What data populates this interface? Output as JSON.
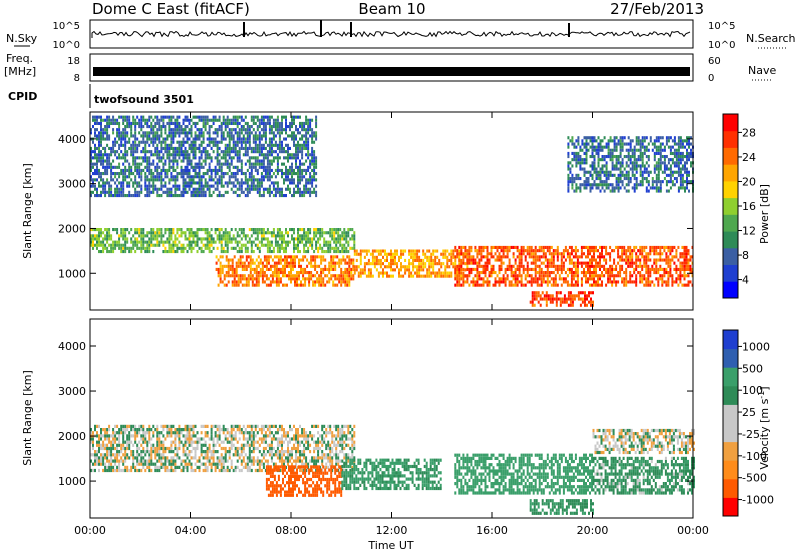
{
  "header": {
    "station": "Dome C East (fitACF)",
    "beam": "Beam 10",
    "date": "27/Feb/2013"
  },
  "params": {
    "nsky_label": "N.Sky",
    "nsearch_label": "N.Search",
    "freq_label": "Freq.",
    "freq_unit": "[MHz]",
    "nave_label": "Nave",
    "cpid_label": "CPID",
    "cpid_value": "twofsound 3501",
    "noise_ticks": [
      "10^5",
      "10^0"
    ],
    "freq_ticks": [
      "18",
      "8"
    ],
    "nave_ticks": [
      "60",
      "0"
    ]
  },
  "chart_data": [
    {
      "type": "heatmap",
      "title": "",
      "xlabel": "",
      "ylabel": "Slant Range [km]",
      "x_ticks": [
        "00:00",
        "04:00",
        "08:00",
        "12:00",
        "16:00",
        "20:00",
        "00:00"
      ],
      "xlim_hours": [
        0,
        24
      ],
      "y_ticks": [
        1000,
        2000,
        3000,
        4000
      ],
      "ylim": [
        180,
        4600
      ],
      "colorbar": {
        "label": "Power [dB]",
        "ticks": [
          "28",
          "24",
          "20",
          "16",
          "12",
          "8",
          "4"
        ],
        "colors": [
          "#0000ff",
          "#1f3fd0",
          "#3b5fa3",
          "#2e8b57",
          "#4fa84f",
          "#8fcf2f",
          "#ffd200",
          "#ffa500",
          "#ff6a00",
          "#ff3000",
          "#ff0000"
        ]
      },
      "bands": [
        {
          "t0": 0,
          "t1": 10.5,
          "r0": 1450,
          "r1": 2000,
          "value": 14
        },
        {
          "t0": 5,
          "t1": 10.5,
          "r0": 700,
          "r1": 1400,
          "value": 24
        },
        {
          "t0": 10.5,
          "t1": 15,
          "r0": 900,
          "r1": 1500,
          "value": 22
        },
        {
          "t0": 14.5,
          "t1": 24,
          "r0": 700,
          "r1": 1600,
          "value": 26
        },
        {
          "t0": 17.5,
          "t1": 20,
          "r0": 250,
          "r1": 550,
          "value": 27
        },
        {
          "t0": 0,
          "t1": 9,
          "r0": 2700,
          "r1": 4500,
          "value": 8
        },
        {
          "t0": 19,
          "t1": 24,
          "r0": 2800,
          "r1": 4000,
          "value": 8
        }
      ]
    },
    {
      "type": "heatmap",
      "title": "",
      "xlabel": "Time UT",
      "ylabel": "Slant Range [km]",
      "x_ticks": [
        "00:00",
        "04:00",
        "08:00",
        "12:00",
        "16:00",
        "20:00",
        "00:00"
      ],
      "xlim_hours": [
        0,
        24
      ],
      "y_ticks": [
        1000,
        2000,
        3000,
        4000
      ],
      "ylim": [
        180,
        4600
      ],
      "colorbar": {
        "label": "Velocity [m s^-1]",
        "ticks": [
          "1000",
          "500",
          "100",
          "25",
          "-25",
          "-100",
          "-500",
          "-1000"
        ],
        "colors": [
          "#ff0000",
          "#ff5a00",
          "#ff8c1a",
          "#f0a040",
          "#c8c8c8",
          "#c8c8c8",
          "#2e8b57",
          "#3a9f6a",
          "#2f5fb0",
          "#1f3fd0"
        ]
      },
      "bands": [
        {
          "t0": 0,
          "t1": 10.5,
          "r0": 1200,
          "r1": 2200,
          "value": 0
        },
        {
          "t0": 7,
          "t1": 10,
          "r0": 650,
          "r1": 1300,
          "value": -400
        },
        {
          "t0": 10,
          "t1": 14,
          "r0": 800,
          "r1": 1500,
          "value": 150
        },
        {
          "t0": 14.5,
          "t1": 20,
          "r0": 700,
          "r1": 1600,
          "value": 300
        },
        {
          "t0": 20,
          "t1": 24,
          "r0": 700,
          "r1": 1500,
          "value": 80
        },
        {
          "t0": 20,
          "t1": 24,
          "r0": 1600,
          "r1": 2100,
          "value": 0
        },
        {
          "t0": 17.5,
          "t1": 20,
          "r0": 250,
          "r1": 550,
          "value": 110
        }
      ]
    }
  ]
}
